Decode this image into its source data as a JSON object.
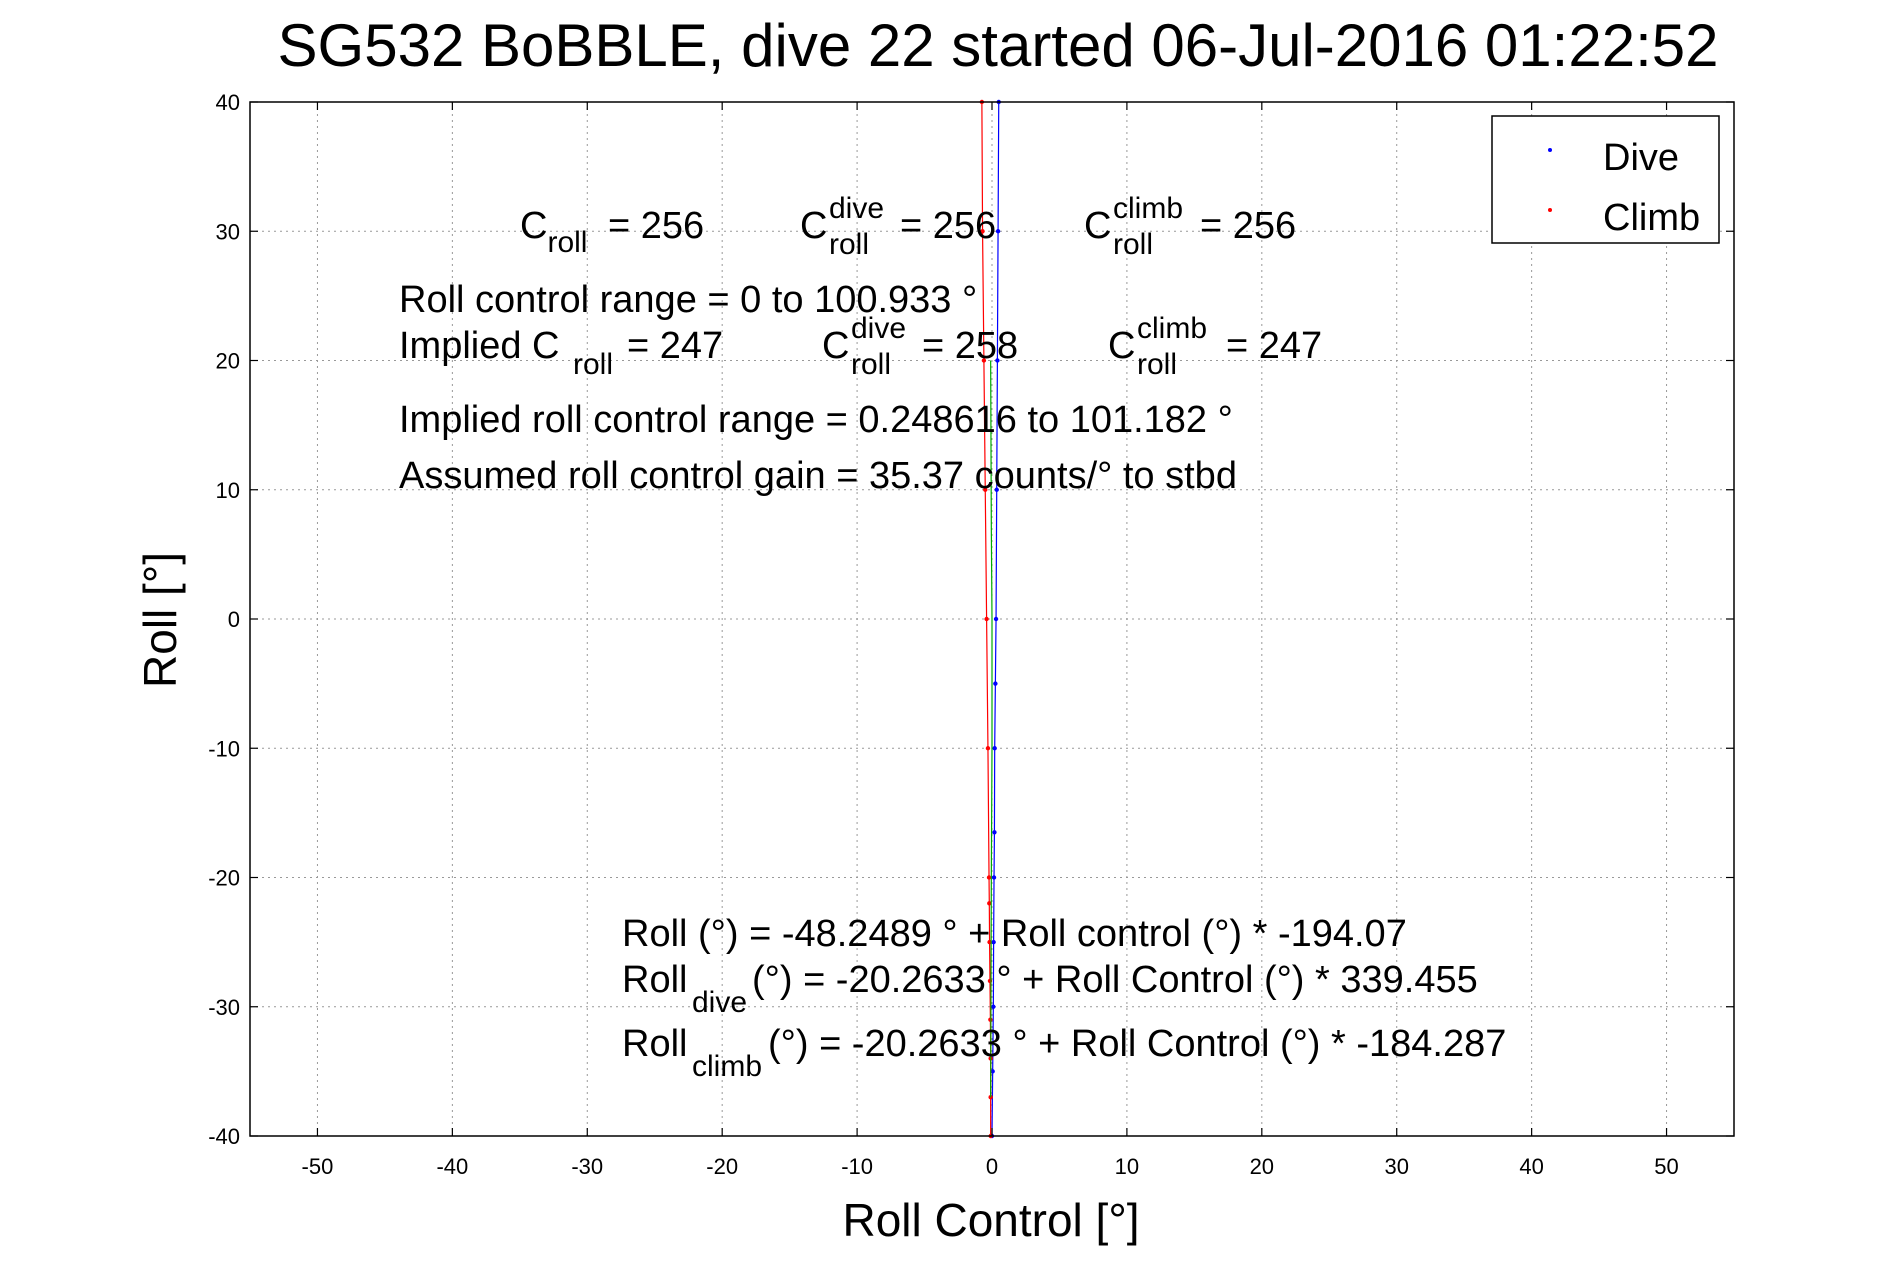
{
  "chart_data": {
    "type": "scatter",
    "title": "SG532 BoBBLE, dive 22 started 06-Jul-2016 01:22:52",
    "xlabel": "Roll Control [°]",
    "ylabel": "Roll [°]",
    "xlim": [
      -55,
      55
    ],
    "ylim": [
      -40,
      40
    ],
    "xticks": [
      -50,
      -40,
      -30,
      -20,
      -10,
      0,
      10,
      20,
      30,
      40,
      50
    ],
    "yticks": [
      -40,
      -30,
      -20,
      -10,
      0,
      10,
      20,
      30,
      40
    ],
    "xtick_labels": [
      "-50",
      "-40",
      "-30",
      "-20",
      "-10",
      "0",
      "10",
      "20",
      "30",
      "40",
      "50"
    ],
    "ytick_labels": [
      "-40",
      "-30",
      "-20",
      "-10",
      "0",
      "10",
      "20",
      "30",
      "40"
    ],
    "grid": true,
    "legend_position": "top-right",
    "series": [
      {
        "name": "Dive",
        "color": "#0000ff",
        "marker": "dot",
        "points": [
          [
            0.0,
            -40
          ],
          [
            0.05,
            -35
          ],
          [
            0.1,
            -30
          ],
          [
            0.12,
            -25
          ],
          [
            0.15,
            -20
          ],
          [
            0.18,
            -16.5
          ],
          [
            0.2,
            -10
          ],
          [
            0.25,
            -5
          ],
          [
            0.3,
            0
          ],
          [
            0.35,
            10
          ],
          [
            0.4,
            20
          ],
          [
            0.45,
            30
          ],
          [
            0.5,
            40
          ]
        ]
      },
      {
        "name": "Climb",
        "color": "#ff0000",
        "marker": "dot",
        "points": [
          [
            -0.1,
            -40
          ],
          [
            -0.1,
            -37
          ],
          [
            -0.1,
            -34
          ],
          [
            -0.12,
            -31
          ],
          [
            -0.15,
            -28
          ],
          [
            -0.18,
            -25
          ],
          [
            -0.2,
            -22
          ],
          [
            -0.22,
            -20
          ],
          [
            -0.3,
            -10
          ],
          [
            -0.4,
            0
          ],
          [
            -0.5,
            10
          ],
          [
            -0.6,
            20
          ],
          [
            -0.7,
            30
          ],
          [
            -0.75,
            40
          ]
        ]
      },
      {
        "color": "#00aa00",
        "marker": "line",
        "points": [
          [
            -0.1,
            -37
          ],
          [
            -0.05,
            -20
          ],
          [
            0.0,
            -10
          ],
          [
            0.0,
            0
          ],
          [
            -0.05,
            7
          ],
          [
            -0.1,
            20
          ]
        ]
      }
    ],
    "annotations": {
      "c_roll": {
        "main": "C",
        "sub": "roll",
        "value": "=  256"
      },
      "c_roll_dive": {
        "main": "C",
        "sub": "roll",
        "sup": "dive",
        "value": "=  256"
      },
      "c_roll_climb": {
        "main": "C",
        "sub": "roll",
        "sup": "climb",
        "value": "=  256"
      },
      "roll_control_range": "Roll control range = 0 to 100.933 °",
      "implied_c_roll": {
        "prefix": "Implied C",
        "sub": "roll",
        "value": "=  247"
      },
      "implied_c_roll_dive": {
        "main": "C",
        "sub": "roll",
        "sup": "dive",
        "value": "=  258"
      },
      "implied_c_roll_climb": {
        "main": "C",
        "sub": "roll",
        "sup": "climb",
        "value": "=  247"
      },
      "implied_range": "Implied roll control range = 0.248616 to 101.182 °",
      "assumed_gain": "Assumed roll control gain = 35.37 counts/° to stbd",
      "fit_all": "Roll (°) = -48.2489 ° + Roll control (°) * -194.07",
      "fit_dive": {
        "main": "Roll",
        "sub": "dive",
        "rest": " (°) = -20.2633 ° + Roll Control (°) * 339.455"
      },
      "fit_climb": {
        "main": "Roll",
        "sub": "climb",
        "rest": " (°) = -20.2633 ° + Roll Control (°) * -184.287"
      }
    }
  }
}
